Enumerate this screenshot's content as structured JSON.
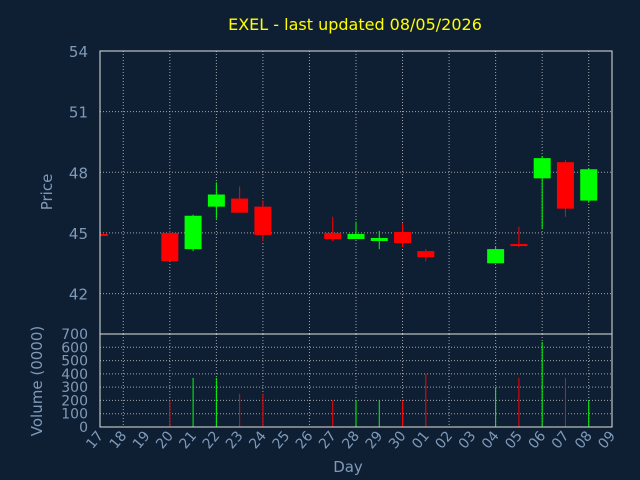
{
  "chart_data": [
    {
      "type": "candlestick",
      "title": "EXEL - last updated 08/05/2026",
      "ylabel": "Price",
      "ylim": [
        40,
        54
      ],
      "yticks": [
        42,
        45,
        48,
        51,
        54
      ],
      "grid": true,
      "up_color": "#00ff00",
      "down_color": "#ff0000",
      "x": [
        "17",
        "18",
        "19",
        "20",
        "21",
        "22",
        "23",
        "24",
        "25",
        "26",
        "27",
        "28",
        "29",
        "30",
        "01",
        "02",
        "03",
        "04",
        "05",
        "06",
        "07",
        "08",
        "09"
      ],
      "candles": [
        {
          "x": "17",
          "open": 44.95,
          "close": 44.9,
          "high": 44.95,
          "low": 44.9
        },
        {
          "x": "20",
          "open": 45.0,
          "close": 43.6,
          "high": 45.1,
          "low": 43.6
        },
        {
          "x": "21",
          "open": 44.2,
          "close": 45.85,
          "high": 45.9,
          "low": 44.1
        },
        {
          "x": "22",
          "open": 46.3,
          "close": 46.9,
          "high": 47.5,
          "low": 45.7
        },
        {
          "x": "23",
          "open": 46.7,
          "close": 46.0,
          "high": 47.3,
          "low": 46.0
        },
        {
          "x": "24",
          "open": 46.3,
          "close": 44.9,
          "high": 46.6,
          "low": 44.6
        },
        {
          "x": "27",
          "open": 45.0,
          "close": 44.7,
          "high": 45.8,
          "low": 44.6
        },
        {
          "x": "28",
          "open": 44.7,
          "close": 44.95,
          "high": 45.55,
          "low": 44.7
        },
        {
          "x": "29",
          "open": 44.6,
          "close": 44.75,
          "high": 45.1,
          "low": 44.2
        },
        {
          "x": "30",
          "open": 45.05,
          "close": 44.5,
          "high": 45.5,
          "low": 44.3
        },
        {
          "x": "01",
          "open": 44.1,
          "close": 43.8,
          "high": 44.2,
          "low": 43.6
        },
        {
          "x": "04",
          "open": 43.5,
          "close": 44.2,
          "high": 44.3,
          "low": 43.5
        },
        {
          "x": "05",
          "open": 44.45,
          "close": 44.4,
          "high": 45.3,
          "low": 44.3
        },
        {
          "x": "06",
          "open": 47.7,
          "close": 48.7,
          "high": 48.8,
          "low": 45.2
        },
        {
          "x": "07",
          "open": 48.5,
          "close": 46.2,
          "high": 48.6,
          "low": 45.8
        },
        {
          "x": "08",
          "open": 46.6,
          "close": 48.15,
          "high": 48.2,
          "low": 46.5
        }
      ]
    },
    {
      "type": "bar",
      "ylabel": "Volume (0000)",
      "xlabel": "Day",
      "ylim": [
        0,
        700
      ],
      "yticks": [
        0,
        100,
        200,
        300,
        400,
        500,
        600,
        700
      ],
      "grid": true,
      "x": [
        "17",
        "18",
        "19",
        "20",
        "21",
        "22",
        "23",
        "24",
        "25",
        "26",
        "27",
        "28",
        "29",
        "30",
        "01",
        "02",
        "03",
        "04",
        "05",
        "06",
        "07",
        "08",
        "09"
      ],
      "bars": [
        {
          "x": "20",
          "value": 200,
          "color": "#ff0000"
        },
        {
          "x": "21",
          "value": 370,
          "color": "#00ff00"
        },
        {
          "x": "22",
          "value": 370,
          "color": "#00ff00"
        },
        {
          "x": "23",
          "value": 250,
          "color": "#ff0000"
        },
        {
          "x": "24",
          "value": 250,
          "color": "#ff0000"
        },
        {
          "x": "27",
          "value": 200,
          "color": "#ff0000"
        },
        {
          "x": "28",
          "value": 200,
          "color": "#00ff00"
        },
        {
          "x": "29",
          "value": 200,
          "color": "#00ff00"
        },
        {
          "x": "30",
          "value": 200,
          "color": "#ff0000"
        },
        {
          "x": "01",
          "value": 400,
          "color": "#ff0000"
        },
        {
          "x": "04",
          "value": 300,
          "color": "#00ff00"
        },
        {
          "x": "05",
          "value": 370,
          "color": "#ff0000"
        },
        {
          "x": "06",
          "value": 640,
          "color": "#00ff00"
        },
        {
          "x": "07",
          "value": 370,
          "color": "#ff0000"
        },
        {
          "x": "08",
          "value": 200,
          "color": "#00ff00"
        }
      ]
    }
  ]
}
